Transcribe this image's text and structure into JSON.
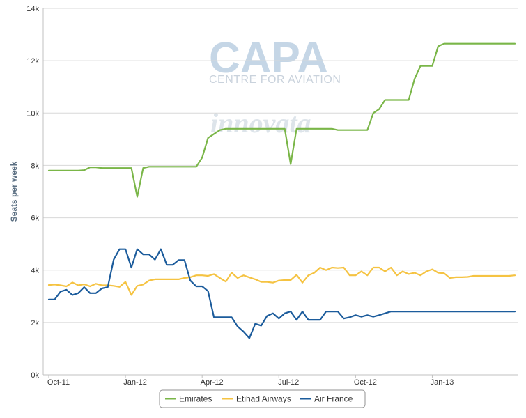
{
  "chart_data": {
    "type": "line",
    "ylabel": "Seats per week",
    "xlabel": "",
    "ylim": [
      0,
      14000
    ],
    "y_ticks": [
      {
        "value": 0,
        "label": "0k"
      },
      {
        "value": 2000,
        "label": "2k"
      },
      {
        "value": 4000,
        "label": "4k"
      },
      {
        "value": 6000,
        "label": "6k"
      },
      {
        "value": 8000,
        "label": "8k"
      },
      {
        "value": 10000,
        "label": "10k"
      },
      {
        "value": 12000,
        "label": "12k"
      },
      {
        "value": 14000,
        "label": "14k"
      }
    ],
    "x_ticks": [
      {
        "week": 0,
        "label": "Oct-11"
      },
      {
        "week": 13,
        "label": "Jan-12"
      },
      {
        "week": 26,
        "label": "Apr-12"
      },
      {
        "week": 39,
        "label": "Jul-12"
      },
      {
        "week": 52,
        "label": "Oct-12"
      },
      {
        "week": 65,
        "label": "Jan-13"
      }
    ],
    "x_unit": "weeks from Oct-11",
    "xlim": [
      0,
      79
    ],
    "grid": "horizontal",
    "legend_position": "bottom-center",
    "series": [
      {
        "name": "Emirates",
        "color": "#7ab648",
        "values": [
          7800,
          7800,
          7800,
          7800,
          7800,
          7800,
          7820,
          7930,
          7930,
          7900,
          7900,
          7900,
          7900,
          7900,
          7900,
          6800,
          7900,
          7950,
          7950,
          7950,
          7950,
          7950,
          7950,
          7950,
          7950,
          7950,
          8300,
          9050,
          9200,
          9350,
          9400,
          9400,
          9400,
          9400,
          9400,
          9400,
          9400,
          9400,
          9400,
          9400,
          9400,
          8050,
          9400,
          9400,
          9400,
          9400,
          9400,
          9400,
          9400,
          9350,
          9350,
          9350,
          9350,
          9350,
          9350,
          10000,
          10150,
          10500,
          10500,
          10500,
          10500,
          10500,
          11300,
          11800,
          11800,
          11800,
          12550,
          12650,
          12650,
          12650,
          12650,
          12650,
          12650,
          12650,
          12650,
          12650,
          12650,
          12650,
          12650,
          12650
        ]
      },
      {
        "name": "Etihad Airways",
        "color": "#f5c342",
        "values": [
          3430,
          3450,
          3420,
          3380,
          3530,
          3420,
          3460,
          3380,
          3480,
          3420,
          3420,
          3400,
          3360,
          3550,
          3050,
          3400,
          3450,
          3600,
          3650,
          3650,
          3650,
          3650,
          3650,
          3700,
          3730,
          3800,
          3800,
          3780,
          3850,
          3700,
          3560,
          3900,
          3700,
          3800,
          3720,
          3650,
          3550,
          3550,
          3520,
          3600,
          3620,
          3620,
          3820,
          3520,
          3800,
          3900,
          4100,
          4000,
          4100,
          4080,
          4100,
          3800,
          3800,
          3950,
          3800,
          4100,
          4100,
          3950,
          4100,
          3800,
          3950,
          3850,
          3900,
          3800,
          3950,
          4030,
          3900,
          3880,
          3700,
          3730,
          3730,
          3740,
          3780,
          3780,
          3780,
          3780,
          3780,
          3780,
          3780,
          3800
        ]
      },
      {
        "name": "Air France",
        "color": "#1c5c9c",
        "values": [
          2880,
          2880,
          3180,
          3250,
          3050,
          3120,
          3350,
          3120,
          3120,
          3300,
          3350,
          4400,
          4800,
          4800,
          4100,
          4800,
          4600,
          4600,
          4400,
          4800,
          4200,
          4200,
          4380,
          4380,
          3600,
          3380,
          3380,
          3200,
          2200,
          2200,
          2200,
          2200,
          1850,
          1650,
          1400,
          1950,
          1880,
          2250,
          2350,
          2150,
          2350,
          2420,
          2100,
          2420,
          2100,
          2100,
          2100,
          2420,
          2420,
          2420,
          2150,
          2200,
          2280,
          2220,
          2280,
          2220,
          2280,
          2350,
          2420,
          2420,
          2420,
          2420,
          2420,
          2420,
          2420,
          2420,
          2420,
          2420,
          2420,
          2420,
          2420,
          2420,
          2420,
          2420,
          2420,
          2420,
          2420,
          2420,
          2420,
          2420
        ]
      }
    ]
  },
  "watermark": {
    "capa": "CAPA",
    "capa_sub": "CENTRE FOR AVIATION",
    "innovata": "innovata"
  }
}
